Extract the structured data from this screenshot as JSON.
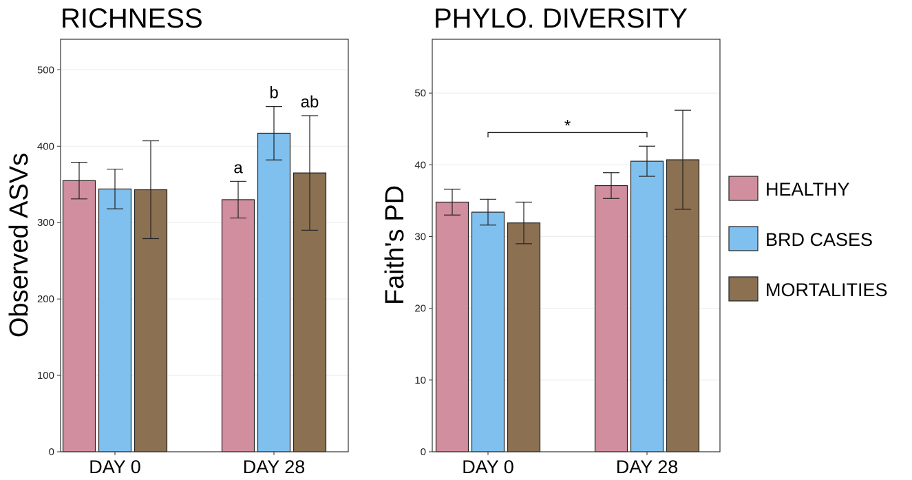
{
  "colors": {
    "HEALTHY": "#d18e9e",
    "BRD CASES": "#7fc0ee",
    "MORTALITIES": "#8b7052",
    "bar_border": "#222222",
    "grid": "#ececec"
  },
  "legend": {
    "items": [
      "HEALTHY",
      "BRD CASES",
      "MORTALITIES"
    ]
  },
  "chart_data": [
    {
      "type": "bar",
      "title": "RICHNESS",
      "xlabel": "",
      "ylabel": "Observed ASVs",
      "ylim": [
        0,
        540
      ],
      "yticks": [
        0,
        100,
        200,
        300,
        400,
        500
      ],
      "grid": true,
      "categories": [
        "DAY 0",
        "DAY 28"
      ],
      "series": [
        {
          "name": "HEALTHY",
          "values": [
            355,
            330
          ],
          "errors": [
            24,
            24
          ]
        },
        {
          "name": "BRD CASES",
          "values": [
            344,
            417
          ],
          "errors": [
            26,
            35
          ]
        },
        {
          "name": "MORTALITIES",
          "values": [
            343,
            365
          ],
          "errors": [
            64,
            75
          ]
        }
      ],
      "annotations": [
        {
          "text": "a",
          "category": "DAY 28",
          "series": "HEALTHY"
        },
        {
          "text": "b",
          "category": "DAY 28",
          "series": "BRD CASES"
        },
        {
          "text": "ab",
          "category": "DAY 28",
          "series": "MORTALITIES"
        }
      ]
    },
    {
      "type": "bar",
      "title": "PHYLO. DIVERSITY",
      "xlabel": "",
      "ylabel": "Faith's PD",
      "ylim": [
        0,
        57.5
      ],
      "yticks": [
        0,
        10,
        20,
        30,
        40,
        50
      ],
      "grid": true,
      "categories": [
        "DAY 0",
        "DAY 28"
      ],
      "series": [
        {
          "name": "HEALTHY",
          "values": [
            34.8,
            37.1
          ],
          "errors": [
            1.8,
            1.8
          ]
        },
        {
          "name": "BRD CASES",
          "values": [
            33.4,
            40.5
          ],
          "errors": [
            1.8,
            2.1
          ]
        },
        {
          "name": "MORTALITIES",
          "values": [
            31.9,
            40.7
          ],
          "errors": [
            2.9,
            6.9
          ]
        }
      ],
      "significance": [
        {
          "text": "*",
          "from": "DAY 0",
          "to": "DAY 28",
          "y": 44.5
        }
      ]
    }
  ]
}
